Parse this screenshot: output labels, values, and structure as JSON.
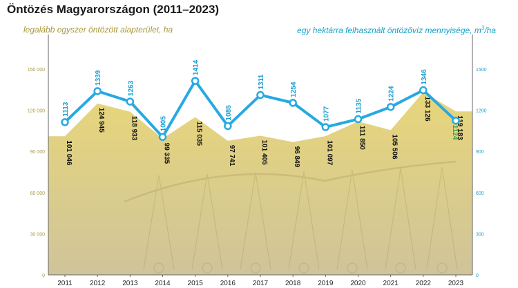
{
  "title": "Öntözés Magyarországon (2011–2023)",
  "subtitle_left": "legalább egyszer öntözött alapterület, ha",
  "subtitle_right_main": "egy hektárra felhasznált öntözővíz mennyisége, m",
  "subtitle_right_sup": "3",
  "subtitle_right_tail": "/ha",
  "colors": {
    "area": "#e8d67a",
    "area_line": "#c9b64f",
    "line": "#27a9e1",
    "line_label": "#1b9fcf",
    "last_label": "#3aa648",
    "left_axis": "#a8993b",
    "right_axis": "#1aa3c9"
  },
  "chart_data": {
    "type": "area+line",
    "x": [
      "2011",
      "2012",
      "2013",
      "2014",
      "2015",
      "2016",
      "2017",
      "2018",
      "2019",
      "2020",
      "2021",
      "2022",
      "2023"
    ],
    "series": [
      {
        "axis": "left",
        "type": "area",
        "values": [
          101046,
          124945,
          118933,
          99335,
          115035,
          97741,
          101405,
          96849,
          101097,
          111850,
          105506,
          133126,
          119183
        ],
        "labels": [
          "101 046",
          "124 945",
          "118 933",
          "99 335",
          "115 035",
          "97 741",
          "101 405",
          "96 849",
          "101 097",
          "111 850",
          "105 506",
          "133 126",
          "119 183"
        ]
      },
      {
        "axis": "right",
        "type": "line",
        "values": [
          1113,
          1339,
          1263,
          1005,
          1414,
          1085,
          1311,
          1254,
          1077,
          1135,
          1224,
          1346,
          1124
        ],
        "labels": [
          "1113",
          "1339",
          "1263",
          "1005",
          "1414",
          "1085",
          "1311",
          "1254",
          "1077",
          "1135",
          "1224",
          "1346",
          "1124"
        ]
      }
    ],
    "left_axis": {
      "ticks": [
        0,
        30000,
        60000,
        90000,
        120000,
        150000
      ],
      "tick_labels": [
        "0",
        "30 000",
        "60 000",
        "90 000",
        "120 000",
        "150 000"
      ],
      "ylim": [
        0,
        150000
      ]
    },
    "right_axis": {
      "ticks": [
        0,
        300,
        600,
        900,
        1200,
        1500
      ],
      "tick_labels": [
        "0",
        "300",
        "600",
        "900",
        "1200",
        "1500"
      ],
      "ylim": [
        0,
        1500
      ]
    },
    "grid": false
  }
}
